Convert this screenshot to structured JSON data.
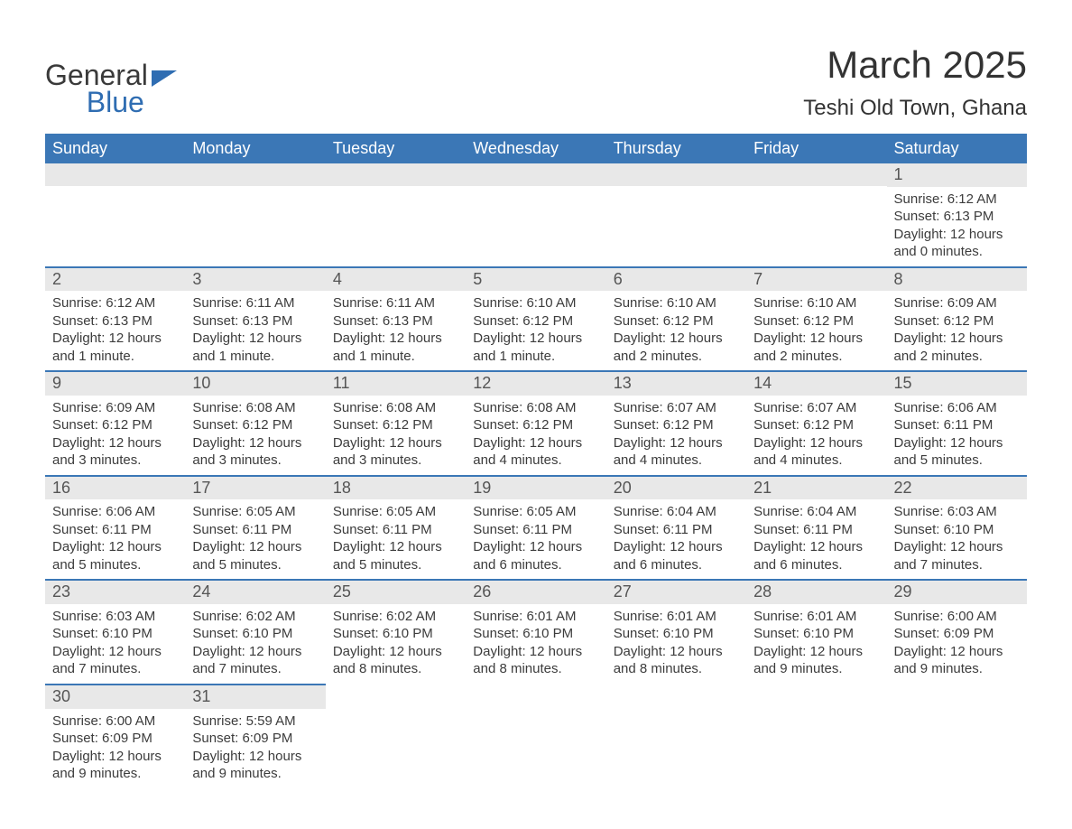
{
  "logo": {
    "line1": "General",
    "line2": "Blue"
  },
  "title": "March 2025",
  "location": "Teshi Old Town, Ghana",
  "colors": {
    "header_bg": "#3b77b6",
    "header_text": "#ffffff",
    "daynum_bg": "#e8e8e8",
    "rule": "#3b77b6",
    "text": "#3c3c3c",
    "logo_blue": "#2f6db2"
  },
  "day_headers": [
    "Sunday",
    "Monday",
    "Tuesday",
    "Wednesday",
    "Thursday",
    "Friday",
    "Saturday"
  ],
  "weeks": [
    [
      null,
      null,
      null,
      null,
      null,
      null,
      {
        "n": "1",
        "sunrise": "Sunrise: 6:12 AM",
        "sunset": "Sunset: 6:13 PM",
        "day1": "Daylight: 12 hours",
        "day2": "and 0 minutes."
      }
    ],
    [
      {
        "n": "2",
        "sunrise": "Sunrise: 6:12 AM",
        "sunset": "Sunset: 6:13 PM",
        "day1": "Daylight: 12 hours",
        "day2": "and 1 minute."
      },
      {
        "n": "3",
        "sunrise": "Sunrise: 6:11 AM",
        "sunset": "Sunset: 6:13 PM",
        "day1": "Daylight: 12 hours",
        "day2": "and 1 minute."
      },
      {
        "n": "4",
        "sunrise": "Sunrise: 6:11 AM",
        "sunset": "Sunset: 6:13 PM",
        "day1": "Daylight: 12 hours",
        "day2": "and 1 minute."
      },
      {
        "n": "5",
        "sunrise": "Sunrise: 6:10 AM",
        "sunset": "Sunset: 6:12 PM",
        "day1": "Daylight: 12 hours",
        "day2": "and 1 minute."
      },
      {
        "n": "6",
        "sunrise": "Sunrise: 6:10 AM",
        "sunset": "Sunset: 6:12 PM",
        "day1": "Daylight: 12 hours",
        "day2": "and 2 minutes."
      },
      {
        "n": "7",
        "sunrise": "Sunrise: 6:10 AM",
        "sunset": "Sunset: 6:12 PM",
        "day1": "Daylight: 12 hours",
        "day2": "and 2 minutes."
      },
      {
        "n": "8",
        "sunrise": "Sunrise: 6:09 AM",
        "sunset": "Sunset: 6:12 PM",
        "day1": "Daylight: 12 hours",
        "day2": "and 2 minutes."
      }
    ],
    [
      {
        "n": "9",
        "sunrise": "Sunrise: 6:09 AM",
        "sunset": "Sunset: 6:12 PM",
        "day1": "Daylight: 12 hours",
        "day2": "and 3 minutes."
      },
      {
        "n": "10",
        "sunrise": "Sunrise: 6:08 AM",
        "sunset": "Sunset: 6:12 PM",
        "day1": "Daylight: 12 hours",
        "day2": "and 3 minutes."
      },
      {
        "n": "11",
        "sunrise": "Sunrise: 6:08 AM",
        "sunset": "Sunset: 6:12 PM",
        "day1": "Daylight: 12 hours",
        "day2": "and 3 minutes."
      },
      {
        "n": "12",
        "sunrise": "Sunrise: 6:08 AM",
        "sunset": "Sunset: 6:12 PM",
        "day1": "Daylight: 12 hours",
        "day2": "and 4 minutes."
      },
      {
        "n": "13",
        "sunrise": "Sunrise: 6:07 AM",
        "sunset": "Sunset: 6:12 PM",
        "day1": "Daylight: 12 hours",
        "day2": "and 4 minutes."
      },
      {
        "n": "14",
        "sunrise": "Sunrise: 6:07 AM",
        "sunset": "Sunset: 6:12 PM",
        "day1": "Daylight: 12 hours",
        "day2": "and 4 minutes."
      },
      {
        "n": "15",
        "sunrise": "Sunrise: 6:06 AM",
        "sunset": "Sunset: 6:11 PM",
        "day1": "Daylight: 12 hours",
        "day2": "and 5 minutes."
      }
    ],
    [
      {
        "n": "16",
        "sunrise": "Sunrise: 6:06 AM",
        "sunset": "Sunset: 6:11 PM",
        "day1": "Daylight: 12 hours",
        "day2": "and 5 minutes."
      },
      {
        "n": "17",
        "sunrise": "Sunrise: 6:05 AM",
        "sunset": "Sunset: 6:11 PM",
        "day1": "Daylight: 12 hours",
        "day2": "and 5 minutes."
      },
      {
        "n": "18",
        "sunrise": "Sunrise: 6:05 AM",
        "sunset": "Sunset: 6:11 PM",
        "day1": "Daylight: 12 hours",
        "day2": "and 5 minutes."
      },
      {
        "n": "19",
        "sunrise": "Sunrise: 6:05 AM",
        "sunset": "Sunset: 6:11 PM",
        "day1": "Daylight: 12 hours",
        "day2": "and 6 minutes."
      },
      {
        "n": "20",
        "sunrise": "Sunrise: 6:04 AM",
        "sunset": "Sunset: 6:11 PM",
        "day1": "Daylight: 12 hours",
        "day2": "and 6 minutes."
      },
      {
        "n": "21",
        "sunrise": "Sunrise: 6:04 AM",
        "sunset": "Sunset: 6:11 PM",
        "day1": "Daylight: 12 hours",
        "day2": "and 6 minutes."
      },
      {
        "n": "22",
        "sunrise": "Sunrise: 6:03 AM",
        "sunset": "Sunset: 6:10 PM",
        "day1": "Daylight: 12 hours",
        "day2": "and 7 minutes."
      }
    ],
    [
      {
        "n": "23",
        "sunrise": "Sunrise: 6:03 AM",
        "sunset": "Sunset: 6:10 PM",
        "day1": "Daylight: 12 hours",
        "day2": "and 7 minutes."
      },
      {
        "n": "24",
        "sunrise": "Sunrise: 6:02 AM",
        "sunset": "Sunset: 6:10 PM",
        "day1": "Daylight: 12 hours",
        "day2": "and 7 minutes."
      },
      {
        "n": "25",
        "sunrise": "Sunrise: 6:02 AM",
        "sunset": "Sunset: 6:10 PM",
        "day1": "Daylight: 12 hours",
        "day2": "and 8 minutes."
      },
      {
        "n": "26",
        "sunrise": "Sunrise: 6:01 AM",
        "sunset": "Sunset: 6:10 PM",
        "day1": "Daylight: 12 hours",
        "day2": "and 8 minutes."
      },
      {
        "n": "27",
        "sunrise": "Sunrise: 6:01 AM",
        "sunset": "Sunset: 6:10 PM",
        "day1": "Daylight: 12 hours",
        "day2": "and 8 minutes."
      },
      {
        "n": "28",
        "sunrise": "Sunrise: 6:01 AM",
        "sunset": "Sunset: 6:10 PM",
        "day1": "Daylight: 12 hours",
        "day2": "and 9 minutes."
      },
      {
        "n": "29",
        "sunrise": "Sunrise: 6:00 AM",
        "sunset": "Sunset: 6:09 PM",
        "day1": "Daylight: 12 hours",
        "day2": "and 9 minutes."
      }
    ],
    [
      {
        "n": "30",
        "sunrise": "Sunrise: 6:00 AM",
        "sunset": "Sunset: 6:09 PM",
        "day1": "Daylight: 12 hours",
        "day2": "and 9 minutes."
      },
      {
        "n": "31",
        "sunrise": "Sunrise: 5:59 AM",
        "sunset": "Sunset: 6:09 PM",
        "day1": "Daylight: 12 hours",
        "day2": "and 9 minutes."
      },
      null,
      null,
      null,
      null,
      null
    ]
  ]
}
